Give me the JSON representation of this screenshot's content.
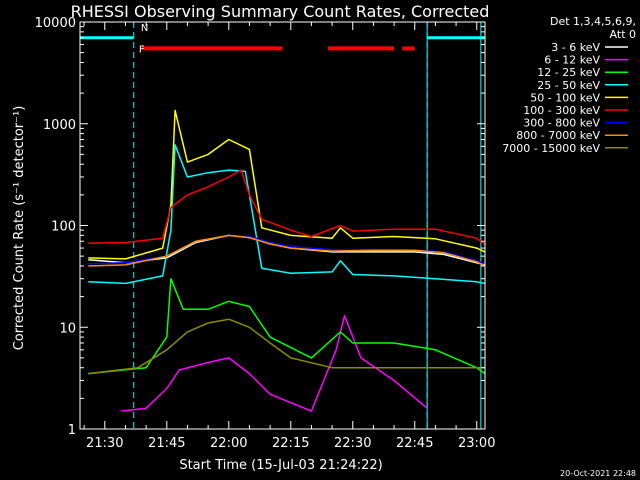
{
  "chart_data": {
    "type": "line",
    "title": "RHESSI Observing Summary Count Rates, Corrected",
    "xlabel": "Start Time (15-Jul-03 21:24:22)",
    "ylabel": "Corrected Count Rate (s⁻¹ detector⁻¹)",
    "yscale": "log",
    "ylim": [
      1,
      10000
    ],
    "xlim": [
      "21:24",
      "23:02"
    ],
    "grid": false,
    "legend_position": "top-right",
    "colors": {
      "background": "#000000",
      "axes": "#ffffff",
      "flags_cyan": "#00ffff",
      "flags_red": "#ff0000"
    },
    "x_ticks": [
      "21:30",
      "21:45",
      "22:00",
      "22:15",
      "22:30",
      "22:45",
      "23:00"
    ],
    "y_ticks": [
      "1",
      "10",
      "100",
      "1000",
      "10000"
    ],
    "detector_info": {
      "line1": "Det 1,3,4,5,6,9,",
      "line2": "Att 0"
    },
    "flag_labels": {
      "n": "N",
      "f": "F"
    },
    "footer_date": "20-Oct-2021 22:48",
    "night_boundaries": [
      "21:37",
      "22:48"
    ],
    "saa_boundaries": [
      "21:24",
      "22:48",
      "23:01"
    ],
    "series": [
      {
        "name": "3 - 6 keV",
        "color": "#ffffff",
        "x": [
          "21:26",
          "21:35",
          "21:45",
          "21:52",
          "22:00",
          "22:05",
          "22:10",
          "22:15",
          "22:25",
          "22:35",
          "22:45",
          "22:52",
          "23:00",
          "23:02"
        ],
        "values": [
          46,
          43,
          48,
          68,
          80,
          76,
          66,
          60,
          55,
          55,
          55,
          52,
          43,
          41
        ]
      },
      {
        "name": "6 - 12 keV",
        "color": "#ff00ff",
        "x": [
          "21:34",
          "21:40",
          "21:45",
          "21:48",
          "21:55",
          "22:00",
          "22:05",
          "22:10",
          "22:20",
          "22:26",
          "22:28",
          "22:32",
          "22:40",
          "22:48"
        ],
        "values": [
          1.5,
          1.6,
          2.5,
          3.8,
          4.5,
          5,
          3.5,
          2.2,
          1.5,
          6,
          13,
          5,
          3,
          1.6
        ]
      },
      {
        "name": "12 - 25 keV",
        "color": "#00ff00",
        "x": [
          "21:26",
          "21:40",
          "21:45",
          "21:46",
          "21:49",
          "21:55",
          "22:00",
          "22:05",
          "22:10",
          "22:20",
          "22:27",
          "22:30",
          "22:40",
          "22:50",
          "23:00",
          "23:02"
        ],
        "values": [
          3.5,
          4,
          8,
          30,
          15,
          15,
          18,
          16,
          8,
          5,
          9,
          7,
          7,
          6,
          4,
          3.5
        ]
      },
      {
        "name": "25 - 50 keV",
        "color": "#00ffff",
        "x": [
          "21:26",
          "21:35",
          "21:44",
          "21:46",
          "21:47",
          "21:50",
          "21:55",
          "22:00",
          "22:04",
          "22:05",
          "22:08",
          "22:15",
          "22:25",
          "22:27",
          "22:30",
          "22:40",
          "22:50",
          "23:00",
          "23:02"
        ],
        "values": [
          28,
          27,
          32,
          90,
          620,
          300,
          330,
          350,
          340,
          200,
          38,
          34,
          35,
          45,
          33,
          32,
          30,
          28,
          27
        ]
      },
      {
        "name": "50 - 100 keV",
        "color": "#ffff00",
        "x": [
          "21:26",
          "21:35",
          "21:44",
          "21:46",
          "21:47",
          "21:50",
          "21:55",
          "22:00",
          "22:05",
          "22:08",
          "22:15",
          "22:25",
          "22:27",
          "22:30",
          "22:40",
          "22:50",
          "23:00",
          "23:02"
        ],
        "values": [
          48,
          47,
          60,
          160,
          1350,
          420,
          500,
          700,
          560,
          95,
          80,
          75,
          95,
          75,
          78,
          74,
          60,
          55
        ]
      },
      {
        "name": "100 - 300 keV",
        "color": "#ff0000",
        "x": [
          "21:26",
          "21:35",
          "21:44",
          "21:46",
          "21:50",
          "21:55",
          "22:00",
          "22:03",
          "22:05",
          "22:08",
          "22:15",
          "22:20",
          "22:27",
          "22:30",
          "22:40",
          "22:50",
          "23:00",
          "23:02"
        ],
        "values": [
          67,
          68,
          75,
          150,
          200,
          240,
          300,
          350,
          200,
          115,
          90,
          78,
          100,
          88,
          92,
          92,
          75,
          65
        ]
      },
      {
        "name": "300 - 800 keV",
        "color": "#0000ff",
        "x": [
          "21:26",
          "21:35",
          "21:45",
          "21:52",
          "22:00",
          "22:05",
          "22:10",
          "22:15",
          "22:25",
          "22:35",
          "22:45",
          "22:52",
          "23:00",
          "23:02"
        ],
        "values": [
          42,
          43,
          50,
          70,
          80,
          78,
          68,
          62,
          58,
          58,
          57,
          55,
          45,
          42
        ]
      },
      {
        "name": "800 - 7000 keV",
        "color": "#ff8c00",
        "x": [
          "21:26",
          "21:35",
          "21:45",
          "21:52",
          "22:00",
          "22:05",
          "22:10",
          "22:15",
          "22:25",
          "22:35",
          "22:45",
          "22:52",
          "23:00",
          "23:02"
        ],
        "values": [
          40,
          41,
          50,
          70,
          80,
          76,
          66,
          60,
          56,
          57,
          57,
          54,
          44,
          40
        ]
      },
      {
        "name": "7000 - 15000 keV",
        "color": "#8b8b00",
        "x": [
          "21:26",
          "21:38",
          "21:45",
          "21:50",
          "21:55",
          "22:00",
          "22:05",
          "22:10",
          "22:15",
          "22:25",
          "22:30",
          "22:40",
          "22:50",
          "23:00",
          "23:02"
        ],
        "values": [
          3.5,
          4,
          6,
          9,
          11,
          12,
          10,
          7,
          5,
          4,
          4,
          4,
          4,
          4,
          4
        ]
      }
    ]
  }
}
